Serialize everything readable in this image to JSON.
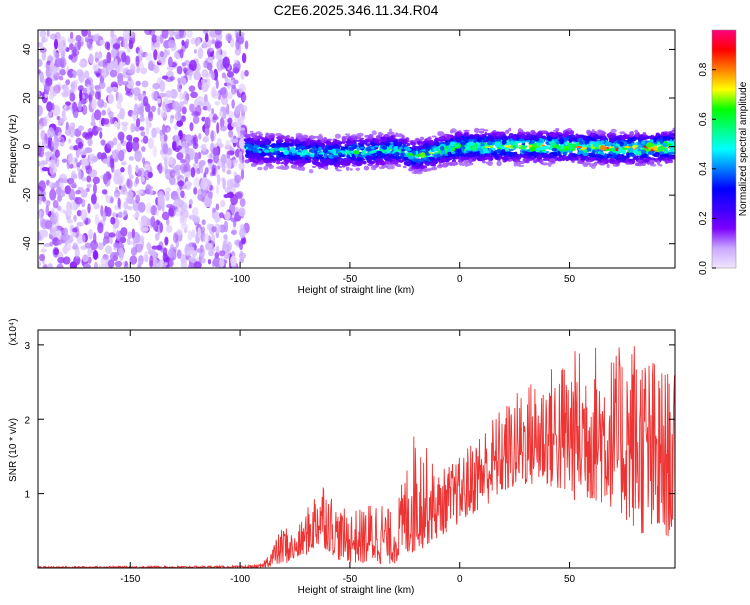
{
  "title": "C2E6.2025.346.11.34.R04",
  "chart_data": [
    {
      "type": "heatmap",
      "xlabel": "Height of straight line (km)",
      "ylabel": "Frequency (Hz)",
      "xlim": [
        -192,
        98
      ],
      "ylim": [
        -50,
        48
      ],
      "x_ticks": [
        -150,
        -100,
        -50,
        0,
        50
      ],
      "y_ticks": [
        -40,
        -20,
        0,
        20,
        40
      ],
      "grid": false,
      "colorbar": {
        "label": "Normalized spectral amplitude",
        "range": [
          0,
          0.96
        ],
        "ticks": [
          0.0,
          0.2,
          0.4,
          0.6,
          0.8
        ],
        "colors": [
          "#f2e6ff",
          "#c9a8ff",
          "#7b00ff",
          "#3a00ff",
          "#0000ff",
          "#0080ff",
          "#00ffff",
          "#00ff80",
          "#00ff00",
          "#ffff00",
          "#ff8000",
          "#ff0000",
          "#ff0080"
        ]
      },
      "regions": [
        {
          "description": "speckled background noise",
          "x_range": [
            -192,
            -97
          ],
          "freq_range": [
            -50,
            48
          ],
          "amplitude": [
            0.02,
            0.15
          ]
        },
        {
          "description": "signal band",
          "x_range": [
            -97,
            98
          ],
          "amplitude": [
            0.1,
            0.96
          ]
        }
      ],
      "band_center": [
        {
          "x": -97,
          "freq": -1
        },
        {
          "x": -75,
          "freq": -2
        },
        {
          "x": -60,
          "freq": -3
        },
        {
          "x": -40,
          "freq": -2
        },
        {
          "x": -30,
          "freq": -1
        },
        {
          "x": -20,
          "freq": -4
        },
        {
          "x": -10,
          "freq": -2
        },
        {
          "x": 0,
          "freq": 0
        },
        {
          "x": 20,
          "freq": 0
        },
        {
          "x": 50,
          "freq": 0
        },
        {
          "x": 75,
          "freq": -1
        },
        {
          "x": 98,
          "freq": 0
        }
      ]
    },
    {
      "type": "line",
      "xlabel": "Height of straight line (km)",
      "ylabel": "SNR (10 * v/v)",
      "y_scale_label": "(x10⁴)",
      "xlim": [
        -192,
        98
      ],
      "ylim": [
        0,
        3.2
      ],
      "x_ticks": [
        -150,
        -100,
        -50,
        0,
        50
      ],
      "y_ticks": [
        1,
        2,
        3
      ],
      "series": [
        {
          "name": "SNR",
          "color": "#ee3333",
          "envelope": [
            {
              "x": -192,
              "low": 0.0,
              "high": 0.02
            },
            {
              "x": -100,
              "low": 0.0,
              "high": 0.03
            },
            {
              "x": -90,
              "low": 0.0,
              "high": 0.05
            },
            {
              "x": -80,
              "low": 0.05,
              "high": 0.6
            },
            {
              "x": -75,
              "low": 0.1,
              "high": 0.45
            },
            {
              "x": -68,
              "low": 0.2,
              "high": 0.9
            },
            {
              "x": -63,
              "low": 0.3,
              "high": 1.3
            },
            {
              "x": -55,
              "low": 0.1,
              "high": 0.8
            },
            {
              "x": -45,
              "low": 0.05,
              "high": 0.8
            },
            {
              "x": -37,
              "low": 0.05,
              "high": 1.0
            },
            {
              "x": -30,
              "low": 0.05,
              "high": 0.7
            },
            {
              "x": -20,
              "low": 0.2,
              "high": 1.95
            },
            {
              "x": -10,
              "low": 0.4,
              "high": 1.3
            },
            {
              "x": 0,
              "low": 0.6,
              "high": 1.5
            },
            {
              "x": 10,
              "low": 0.8,
              "high": 1.9
            },
            {
              "x": 20,
              "low": 1.0,
              "high": 2.2
            },
            {
              "x": 30,
              "low": 1.1,
              "high": 2.5
            },
            {
              "x": 40,
              "low": 1.1,
              "high": 2.7
            },
            {
              "x": 50,
              "low": 0.9,
              "high": 2.9
            },
            {
              "x": 60,
              "low": 0.9,
              "high": 3.1
            },
            {
              "x": 70,
              "low": 0.8,
              "high": 2.9
            },
            {
              "x": 80,
              "low": 0.5,
              "high": 3.2
            },
            {
              "x": 90,
              "low": 0.3,
              "high": 2.8
            },
            {
              "x": 98,
              "low": 0.5,
              "high": 2.6
            }
          ]
        }
      ]
    }
  ]
}
